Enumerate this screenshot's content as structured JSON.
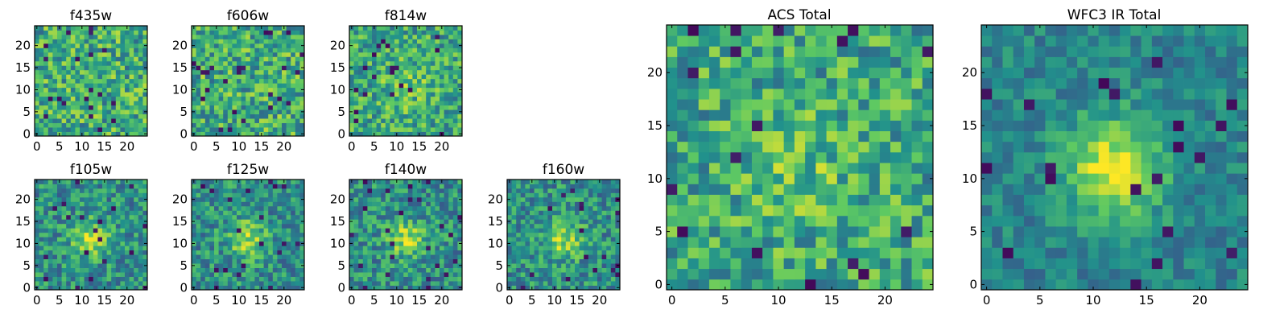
{
  "figure": {
    "colormap": "viridis",
    "colors": {
      "dark": "#440154",
      "mid": "#21918c",
      "light": "#fde725",
      "frame": "#000000"
    }
  },
  "chart_data": [
    {
      "id": "f435w",
      "type": "heatmap",
      "title": "f435w",
      "grid_size": 25,
      "xlim": [
        -0.5,
        24.5
      ],
      "ylim": [
        -0.5,
        24.5
      ],
      "xticks": [
        "0",
        "5",
        "10",
        "15",
        "20"
      ],
      "yticks": [
        "0",
        "5",
        "10",
        "15",
        "20"
      ],
      "structure": "noise",
      "seed": 11
    },
    {
      "id": "f606w",
      "type": "heatmap",
      "title": "f606w",
      "grid_size": 25,
      "xlim": [
        -0.5,
        24.5
      ],
      "ylim": [
        -0.5,
        24.5
      ],
      "xticks": [
        "0",
        "5",
        "10",
        "15",
        "20"
      ],
      "yticks": [
        "0",
        "5",
        "10",
        "15",
        "20"
      ],
      "structure": "noise",
      "seed": 23
    },
    {
      "id": "f814w",
      "type": "heatmap",
      "title": "f814w",
      "grid_size": 25,
      "xlim": [
        -0.5,
        24.5
      ],
      "ylim": [
        -0.5,
        24.5
      ],
      "xticks": [
        "0",
        "5",
        "10",
        "15",
        "20"
      ],
      "yticks": [
        "0",
        "5",
        "10",
        "15",
        "20"
      ],
      "structure": "faint-source",
      "seed": 37
    },
    {
      "id": "f105w",
      "type": "heatmap",
      "title": "f105w",
      "grid_size": 25,
      "xlim": [
        -0.5,
        24.5
      ],
      "ylim": [
        -0.5,
        24.5
      ],
      "xticks": [
        "0",
        "5",
        "10",
        "15",
        "20"
      ],
      "yticks": [
        "0",
        "5",
        "10",
        "15",
        "20"
      ],
      "structure": "source",
      "seed": 41
    },
    {
      "id": "f125w",
      "type": "heatmap",
      "title": "f125w",
      "grid_size": 25,
      "xlim": [
        -0.5,
        24.5
      ],
      "ylim": [
        -0.5,
        24.5
      ],
      "xticks": [
        "0",
        "5",
        "10",
        "15",
        "20"
      ],
      "yticks": [
        "0",
        "5",
        "10",
        "15",
        "20"
      ],
      "structure": "source",
      "seed": 53
    },
    {
      "id": "f140w",
      "type": "heatmap",
      "title": "f140w",
      "grid_size": 25,
      "xlim": [
        -0.5,
        24.5
      ],
      "ylim": [
        -0.5,
        24.5
      ],
      "xticks": [
        "0",
        "5",
        "10",
        "15",
        "20"
      ],
      "yticks": [
        "0",
        "5",
        "10",
        "15",
        "20"
      ],
      "structure": "source",
      "seed": 67
    },
    {
      "id": "f160w",
      "type": "heatmap",
      "title": "f160w",
      "grid_size": 25,
      "xlim": [
        -0.5,
        24.5
      ],
      "ylim": [
        -0.5,
        24.5
      ],
      "xticks": [
        "0",
        "5",
        "10",
        "15",
        "20"
      ],
      "yticks": [
        "0",
        "5",
        "10",
        "15",
        "20"
      ],
      "structure": "source",
      "seed": 79
    },
    {
      "id": "acs-total",
      "type": "heatmap",
      "title": "ACS Total",
      "grid_size": 25,
      "xlim": [
        -0.5,
        24.5
      ],
      "ylim": [
        -0.5,
        24.5
      ],
      "xticks": [
        "0",
        "5",
        "10",
        "15",
        "20"
      ],
      "yticks": [
        "0",
        "5",
        "10",
        "15",
        "20"
      ],
      "structure": "faint-source",
      "seed": 97
    },
    {
      "id": "wfc3-ir-total",
      "type": "heatmap",
      "title": "WFC3 IR Total",
      "grid_size": 25,
      "xlim": [
        -0.5,
        24.5
      ],
      "ylim": [
        -0.5,
        24.5
      ],
      "xticks": [
        "0",
        "5",
        "10",
        "15",
        "20"
      ],
      "yticks": [
        "0",
        "5",
        "10",
        "15",
        "20"
      ],
      "structure": "smooth-source",
      "seed": 131
    }
  ]
}
